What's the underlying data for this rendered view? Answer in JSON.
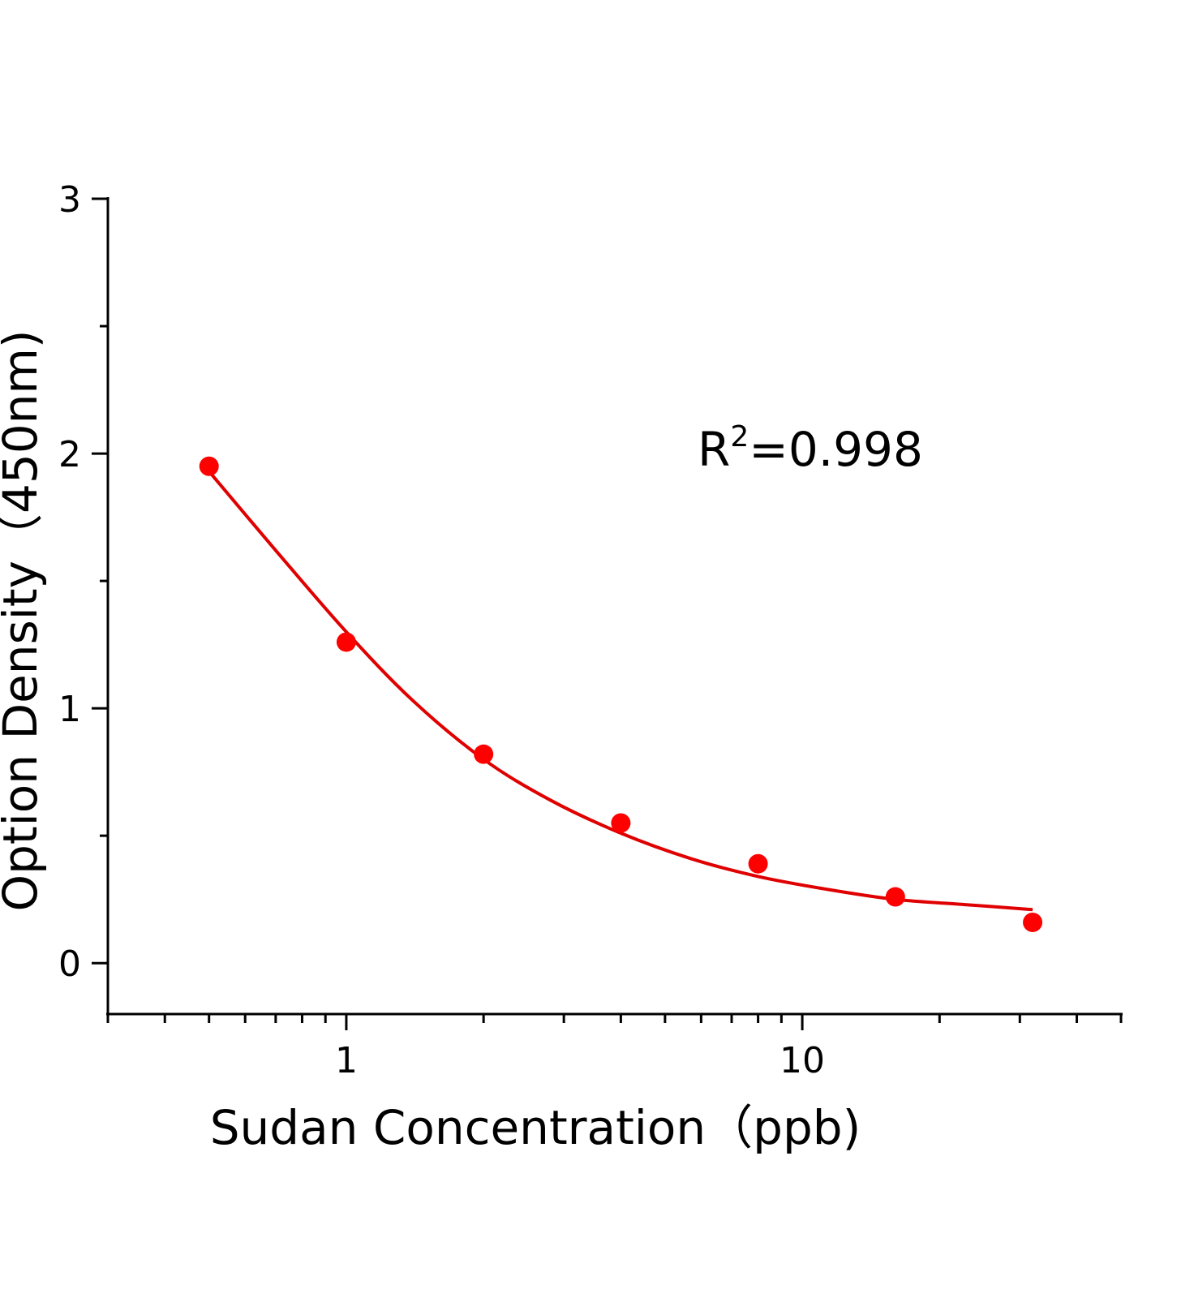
{
  "chart_data": {
    "type": "scatter",
    "title": "",
    "xlabel": "Sudan Concentration（ppb)",
    "ylabel": "Option Density（450nm)",
    "xscale": "log",
    "xlim": [
      0.3,
      50
    ],
    "ylim": [
      -0.2,
      3
    ],
    "x_ticks": [
      1,
      10
    ],
    "x_tick_labels": [
      "1",
      "10"
    ],
    "y_ticks": [
      0,
      1,
      2,
      3
    ],
    "y_tick_labels": [
      "0",
      "1",
      "2",
      "3"
    ],
    "grid": false,
    "legend": "none",
    "point_color": "#ff0000",
    "line_color": "#e00000",
    "series": [
      {
        "type": "scatter",
        "x": [
          0.5,
          1,
          2,
          4,
          8,
          16,
          32
        ],
        "y": [
          1.95,
          1.26,
          0.82,
          0.55,
          0.39,
          0.26,
          0.16
        ]
      },
      {
        "type": "line",
        "x": [
          0.5,
          0.7,
          1,
          1.4,
          2,
          2.8,
          4,
          5.7,
          8,
          11.3,
          16,
          22.6,
          32
        ],
        "y": [
          1.93,
          1.62,
          1.3,
          1.03,
          0.8,
          0.64,
          0.51,
          0.41,
          0.34,
          0.29,
          0.25,
          0.23,
          0.21
        ]
      }
    ],
    "annotations": [
      {
        "base": "R",
        "sup": "2",
        "rest": "=0.998"
      }
    ]
  }
}
